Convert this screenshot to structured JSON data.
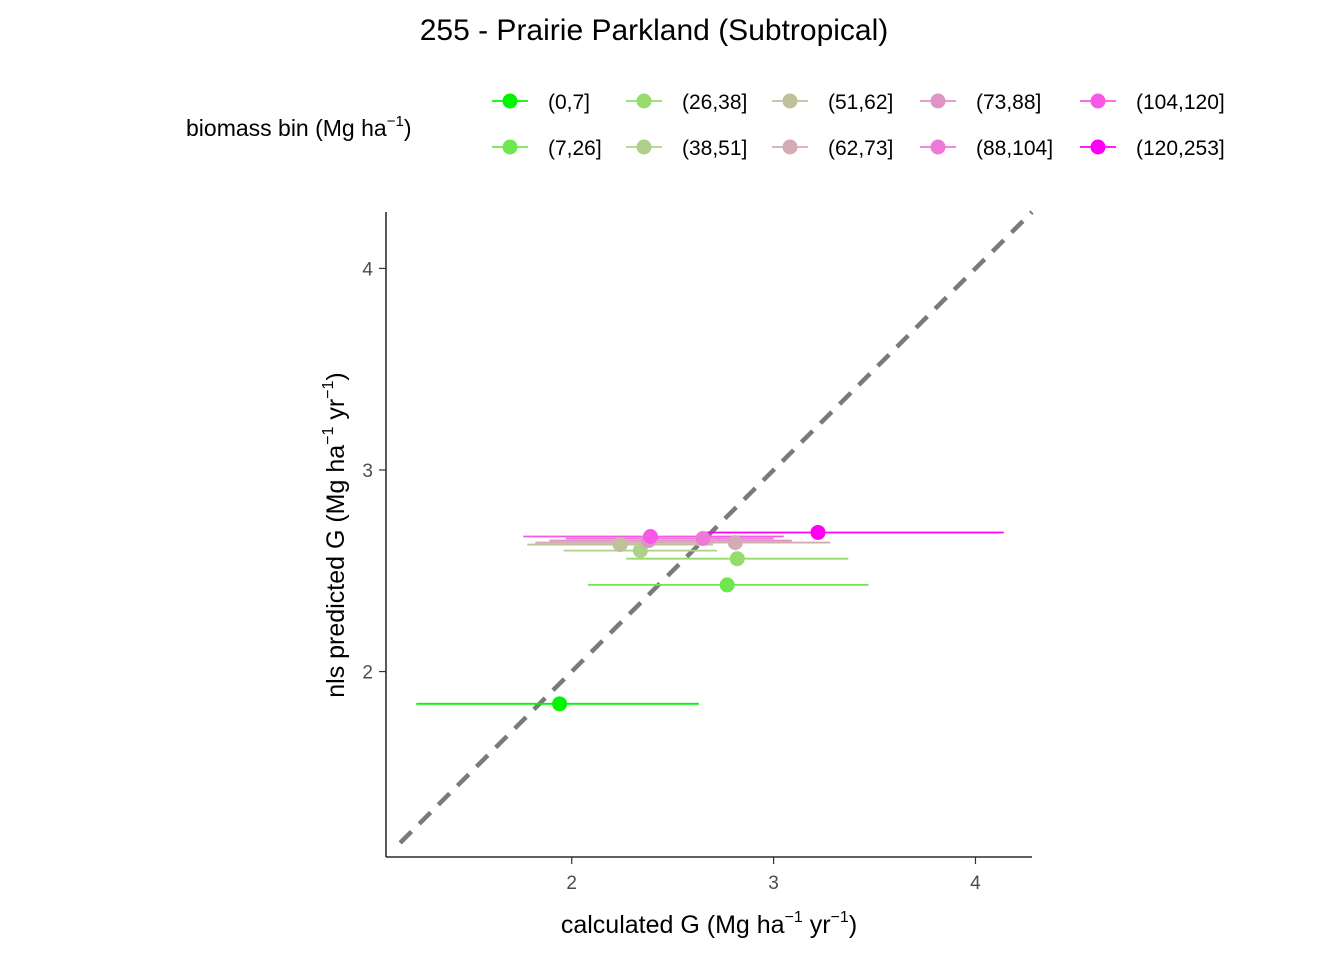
{
  "chart_data": {
    "type": "scatter",
    "title": "255 - Prairie Parkland (Subtropical)",
    "xlabel": {
      "main": "calculated G (Mg ha",
      "sup1": "−1",
      "mid": " yr",
      "sup2": "−1",
      "end": ")"
    },
    "ylabel": {
      "main": "nls predicted G (Mg ha",
      "sup1": "−1",
      "mid": " yr",
      "sup2": "−1",
      "end": ")"
    },
    "xlim": [
      1.08,
      4.28
    ],
    "ylim": [
      1.08,
      4.28
    ],
    "x_ticks": [
      "2",
      "3",
      "4"
    ],
    "y_ticks": [
      "2",
      "3",
      "4"
    ],
    "reference_line": "y = x (dashed)",
    "legend": {
      "title": {
        "main": "biomass bin (Mg ha",
        "sup": "−1",
        "end": ")"
      },
      "placement": "top"
    },
    "series": [
      {
        "name": "(0,7]",
        "color": "#00f500",
        "x": 1.94,
        "y": 1.84,
        "xmin": 1.23,
        "xmax": 2.63
      },
      {
        "name": "(7,26]",
        "color": "#6ee84c",
        "x": 2.77,
        "y": 2.43,
        "xmin": 2.08,
        "xmax": 3.47
      },
      {
        "name": "(26,38]",
        "color": "#95dc6d",
        "x": 2.82,
        "y": 2.56,
        "xmin": 2.27,
        "xmax": 3.37
      },
      {
        "name": "(38,51]",
        "color": "#aed08a",
        "x": 2.34,
        "y": 2.6,
        "xmin": 1.96,
        "xmax": 2.72
      },
      {
        "name": "(51,62]",
        "color": "#c0c09c",
        "x": 2.24,
        "y": 2.63,
        "xmin": 1.78,
        "xmax": 2.7
      },
      {
        "name": "(62,73]",
        "color": "#d4aab4",
        "x": 2.81,
        "y": 2.64,
        "xmin": 1.82,
        "xmax": 3.28
      },
      {
        "name": "(73,88]",
        "color": "#df93c6",
        "x": 2.38,
        "y": 2.65,
        "xmin": 1.89,
        "xmax": 3.09
      },
      {
        "name": "(88,104]",
        "color": "#ee79d8",
        "x": 2.65,
        "y": 2.66,
        "xmin": 1.97,
        "xmax": 3.0
      },
      {
        "name": "(104,120]",
        "color": "#f857e8",
        "x": 2.39,
        "y": 2.67,
        "xmin": 1.76,
        "xmax": 3.05
      },
      {
        "name": "(120,253]",
        "color": "#ff00f5",
        "x": 3.22,
        "y": 2.69,
        "xmin": 2.65,
        "xmax": 4.14
      }
    ]
  }
}
